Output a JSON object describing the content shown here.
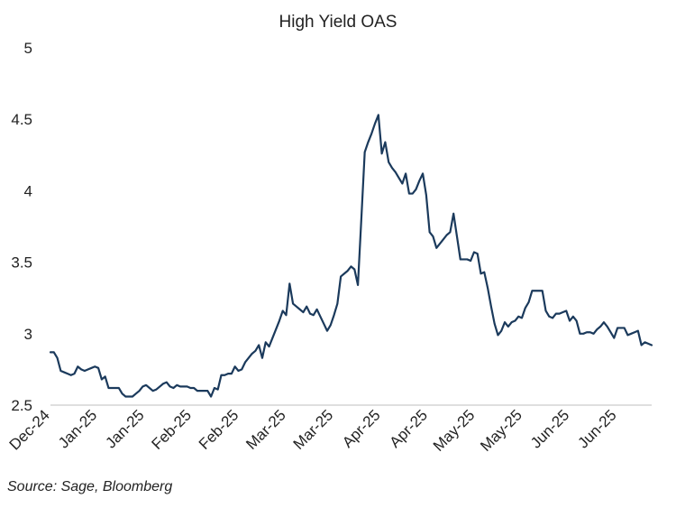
{
  "chart_data": {
    "type": "line",
    "title": "High Yield OAS",
    "xlabel": "",
    "ylabel": "",
    "ylim": [
      2.5,
      5
    ],
    "yticks": [
      2.5,
      3,
      3.5,
      4,
      4.5,
      5
    ],
    "ytick_labels": [
      "2.5",
      "3",
      "3.5",
      "4",
      "4.5",
      "5"
    ],
    "x_ticks": [
      "Dec-24",
      "Jan-25",
      "Jan-25",
      "Feb-25",
      "Feb-25",
      "Mar-25",
      "Mar-25",
      "Apr-25",
      "Apr-25",
      "May-25",
      "May-25",
      "Jun-25",
      "Jun-25"
    ],
    "series": [
      {
        "name": "High Yield OAS",
        "color": "#1b3a5c",
        "values": [
          2.87,
          2.87,
          2.83,
          2.74,
          2.73,
          2.72,
          2.71,
          2.72,
          2.77,
          2.75,
          2.74,
          2.75,
          2.76,
          2.77,
          2.76,
          2.68,
          2.7,
          2.62,
          2.62,
          2.62,
          2.62,
          2.58,
          2.56,
          2.56,
          2.56,
          2.58,
          2.6,
          2.63,
          2.64,
          2.62,
          2.6,
          2.61,
          2.63,
          2.65,
          2.66,
          2.63,
          2.62,
          2.64,
          2.63,
          2.63,
          2.63,
          2.62,
          2.62,
          2.6,
          2.6,
          2.6,
          2.6,
          2.56,
          2.62,
          2.61,
          2.71,
          2.71,
          2.72,
          2.72,
          2.77,
          2.74,
          2.75,
          2.8,
          2.83,
          2.86,
          2.88,
          2.92,
          2.83,
          2.94,
          2.91,
          2.97,
          3.03,
          3.09,
          3.16,
          3.13,
          3.35,
          3.21,
          3.19,
          3.17,
          3.15,
          3.19,
          3.14,
          3.13,
          3.17,
          3.12,
          3.07,
          3.02,
          3.06,
          3.13,
          3.21,
          3.4,
          3.42,
          3.44,
          3.47,
          3.45,
          3.34,
          3.8,
          4.27,
          4.34,
          4.4,
          4.47,
          4.53,
          4.26,
          4.34,
          4.2,
          4.16,
          4.13,
          4.09,
          4.05,
          4.12,
          3.98,
          3.98,
          4.01,
          4.07,
          4.12,
          3.97,
          3.71,
          3.68,
          3.6,
          3.63,
          3.66,
          3.69,
          3.71,
          3.84,
          3.68,
          3.52,
          3.52,
          3.52,
          3.51,
          3.57,
          3.56,
          3.42,
          3.43,
          3.32,
          3.19,
          3.07,
          2.99,
          3.02,
          3.08,
          3.05,
          3.08,
          3.09,
          3.12,
          3.11,
          3.18,
          3.22,
          3.3,
          3.3,
          3.3,
          3.3,
          3.16,
          3.12,
          3.11,
          3.14,
          3.14,
          3.15,
          3.16,
          3.09,
          3.12,
          3.09,
          3.0,
          3.0,
          3.01,
          3.01,
          3.0,
          3.03,
          3.05,
          3.08,
          3.05,
          3.01,
          2.97,
          3.04,
          3.04,
          3.04,
          2.99,
          3.0,
          3.01,
          3.02,
          2.92,
          2.94,
          2.93,
          2.92
        ]
      }
    ],
    "source": "Source: Sage, Bloomberg"
  }
}
